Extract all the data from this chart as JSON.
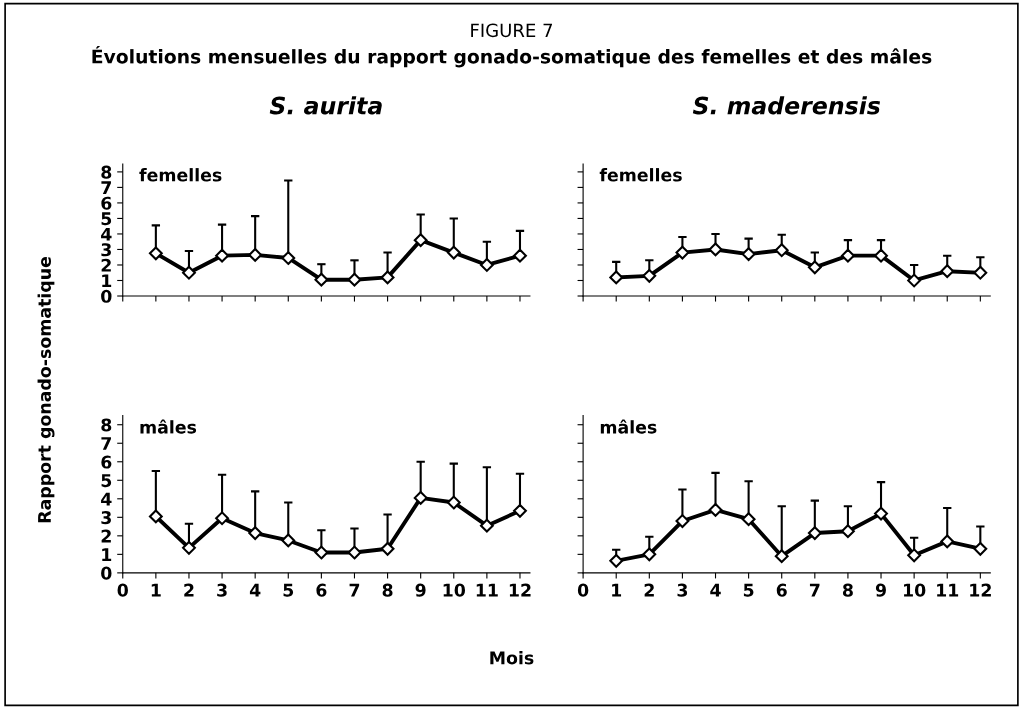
{
  "chart_data": [
    {
      "type": "line",
      "title": "S. aurita",
      "annotations": [
        "FIGURE 7",
        "Évolutions mensuelles du rapport gonado-somatique des femelles et des mâles",
        "femelles"
      ],
      "ylabel": "Rapport gonado-somatique",
      "x": [
        1,
        2,
        3,
        4,
        5,
        6,
        7,
        8,
        9,
        10,
        11,
        12
      ],
      "series": [
        {
          "color": "#000000",
          "values": [
            2.75,
            1.5,
            2.6,
            2.65,
            2.45,
            1.05,
            1.05,
            1.2,
            3.6,
            2.8,
            2.0,
            2.6
          ],
          "errors": [
            [
              2.75,
              4.55
            ],
            [
              1.5,
              2.9
            ],
            [
              2.6,
              4.6
            ],
            [
              2.65,
              5.15
            ],
            [
              2.45,
              7.45
            ],
            [
              1.05,
              2.05
            ],
            [
              1.05,
              2.3
            ],
            [
              1.2,
              2.8
            ],
            [
              3.6,
              5.25
            ],
            [
              2.8,
              5.0
            ],
            [
              2.0,
              3.5
            ],
            [
              2.6,
              4.2
            ]
          ]
        }
      ],
      "xlim": [
        0,
        12.3
      ],
      "xticks": [
        0,
        1,
        2,
        3,
        4,
        5,
        6,
        7,
        8,
        9,
        10,
        11,
        12
      ],
      "ylim": [
        0,
        8.5
      ],
      "yticks": [
        0,
        1,
        2,
        3,
        4,
        5,
        6,
        7,
        8
      ],
      "tick_labels": "y",
      "marker": "diamond",
      "line_style": "solid",
      "grid": false,
      "legend": false
    },
    {
      "type": "line",
      "title": "S. maderensis",
      "annotations": [
        "femelles"
      ],
      "x": [
        1,
        2,
        3,
        4,
        5,
        6,
        7,
        8,
        9,
        10,
        11,
        12
      ],
      "series": [
        {
          "color": "#000000",
          "values": [
            1.2,
            1.3,
            2.8,
            3.0,
            2.7,
            2.95,
            1.85,
            2.6,
            2.6,
            1.0,
            1.6,
            1.5
          ],
          "errors": [
            [
              1.2,
              2.2
            ],
            [
              1.3,
              2.3
            ],
            [
              2.8,
              3.8
            ],
            [
              3.0,
              4.0
            ],
            [
              2.7,
              3.7
            ],
            [
              2.95,
              3.95
            ],
            [
              1.85,
              2.8
            ],
            [
              2.6,
              3.6
            ],
            [
              2.6,
              3.6
            ],
            [
              1.0,
              2.0
            ],
            [
              1.6,
              2.6
            ],
            [
              1.5,
              2.5
            ]
          ]
        }
      ],
      "xlim": [
        0,
        12.3
      ],
      "xticks": [
        0,
        1,
        2,
        3,
        4,
        5,
        6,
        7,
        8,
        9,
        10,
        11,
        12
      ],
      "ylim": [
        0,
        8.5
      ],
      "yticks": [
        0,
        1,
        2,
        3,
        4,
        5,
        6,
        7,
        8
      ],
      "tick_labels": false,
      "marker": "diamond",
      "line_style": "solid",
      "grid": false,
      "legend": false
    },
    {
      "type": "line",
      "annotations": [
        "mâles"
      ],
      "xlabel": "Mois",
      "x": [
        1,
        2,
        3,
        4,
        5,
        6,
        7,
        8,
        9,
        10,
        11,
        12
      ],
      "series": [
        {
          "color": "#000000",
          "values": [
            3.05,
            1.35,
            2.95,
            2.15,
            1.75,
            1.1,
            1.1,
            1.3,
            4.05,
            3.8,
            2.55,
            3.35
          ],
          "errors": [
            [
              3.05,
              5.5
            ],
            [
              1.35,
              2.65
            ],
            [
              2.95,
              5.3
            ],
            [
              2.15,
              4.4
            ],
            [
              1.75,
              3.8
            ],
            [
              1.1,
              2.3
            ],
            [
              1.1,
              2.4
            ],
            [
              1.3,
              3.15
            ],
            [
              4.05,
              6.0
            ],
            [
              3.8,
              5.9
            ],
            [
              2.55,
              5.7
            ],
            [
              3.35,
              5.35
            ]
          ]
        }
      ],
      "xlim": [
        0,
        12.3
      ],
      "xticks": [
        0,
        1,
        2,
        3,
        4,
        5,
        6,
        7,
        8,
        9,
        10,
        11,
        12
      ],
      "ylim": [
        0,
        8.5
      ],
      "yticks": [
        0,
        1,
        2,
        3,
        4,
        5,
        6,
        7,
        8
      ],
      "marker": "diamond",
      "line_style": "solid",
      "grid": false,
      "legend": false
    },
    {
      "type": "line",
      "annotations": [
        "mâles"
      ],
      "x": [
        1,
        2,
        3,
        4,
        5,
        6,
        7,
        8,
        9,
        10,
        11,
        12
      ],
      "series": [
        {
          "color": "#000000",
          "values": [
            0.65,
            1.0,
            2.8,
            3.4,
            2.9,
            0.9,
            2.15,
            2.25,
            3.2,
            0.95,
            1.7,
            1.3
          ],
          "errors": [
            [
              0.65,
              1.25
            ],
            [
              1.0,
              1.95
            ],
            [
              2.8,
              4.5
            ],
            [
              3.4,
              5.4
            ],
            [
              2.9,
              4.95
            ],
            [
              0.9,
              3.6
            ],
            [
              2.15,
              3.9
            ],
            [
              2.25,
              3.6
            ],
            [
              3.2,
              4.9
            ],
            [
              0.95,
              1.9
            ],
            [
              1.7,
              3.5
            ],
            [
              1.3,
              2.5
            ]
          ]
        }
      ],
      "xlim": [
        0,
        12.3
      ],
      "xticks": [
        0,
        1,
        2,
        3,
        4,
        5,
        6,
        7,
        8,
        9,
        10,
        11,
        12
      ],
      "ylim": [
        0,
        8.5
      ],
      "yticks": [
        0,
        1,
        2,
        3,
        4,
        5,
        6,
        7,
        8
      ],
      "tick_labels": "x",
      "marker": "diamond",
      "line_style": "solid",
      "grid": false,
      "legend": false
    }
  ]
}
